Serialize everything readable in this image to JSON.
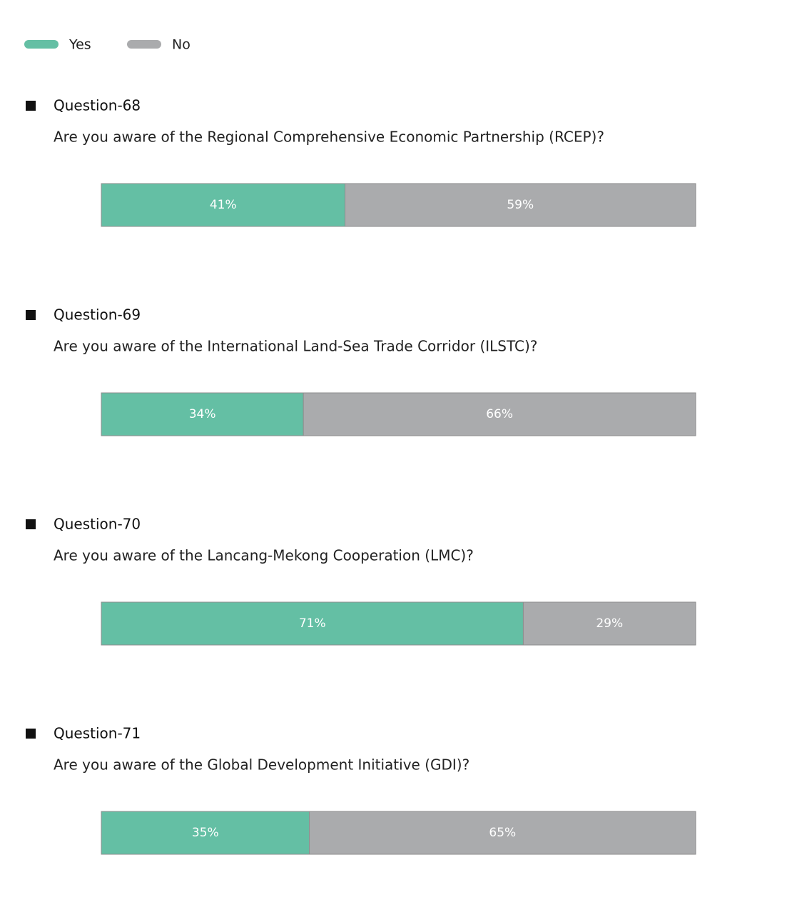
{
  "chart_data": {
    "type": "bar",
    "orientation": "horizontal",
    "stacked": true,
    "categories": [
      "Question-68",
      "Question-69",
      "Question-70",
      "Question-71"
    ],
    "questions": [
      "Are you aware of the Regional Comprehensive Economic Partnership (RCEP)?",
      "Are you aware of the International Land-Sea Trade Corridor (ILSTC)?",
      "Are you aware of the Lancang-Mekong Cooperation (LMC)?",
      "Are you aware of the Global Development Initiative (GDI)?"
    ],
    "series": [
      {
        "name": "Yes",
        "color": "#64bfa4",
        "values": [
          41,
          34,
          71,
          35
        ],
        "value_labels": [
          "41%",
          "34%",
          "71%",
          "35%"
        ]
      },
      {
        "name": "No",
        "color": "#aaabad",
        "values": [
          59,
          66,
          29,
          65
        ],
        "value_labels": [
          "59%",
          "66%",
          "29%",
          "65%"
        ]
      }
    ],
    "legend": "top-left"
  }
}
